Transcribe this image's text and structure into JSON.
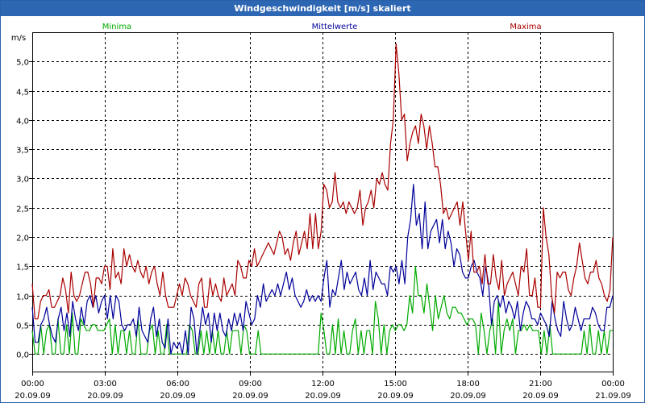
{
  "window": {
    "title": "Windgeschwindigkeit [m/s] skaliert"
  },
  "chart_data": {
    "type": "line",
    "title": "Windgeschwindigkeit [m/s] skaliert",
    "ylabel": "m/s",
    "ylim": [
      -0.3,
      5.5
    ],
    "yticks": [
      "0,0",
      "0,5",
      "1,0",
      "1,5",
      "2,0",
      "2,5",
      "3,0",
      "3,5",
      "4,0",
      "4,5",
      "5,0"
    ],
    "xlim_hours": [
      0,
      24
    ],
    "xticks": [
      {
        "time": "00:00",
        "date": "20.09.09"
      },
      {
        "time": "03:00",
        "date": "20.09.09"
      },
      {
        "time": "06:00",
        "date": "20.09.09"
      },
      {
        "time": "09:00",
        "date": "20.09.09"
      },
      {
        "time": "12:00",
        "date": "20.09.09"
      },
      {
        "time": "15:00",
        "date": "20.09.09"
      },
      {
        "time": "18:00",
        "date": "20.09.09"
      },
      {
        "time": "21:00",
        "date": "20.09.09"
      },
      {
        "time": "00:00",
        "date": "21.09.09"
      }
    ],
    "grid": true,
    "series": [
      {
        "name": "Minima",
        "color": "#00aa00",
        "values": [
          0.4,
          0.0,
          0.0,
          0.5,
          0.0,
          0.4,
          0.5,
          0.0,
          0.0,
          0.6,
          0.0,
          0.0,
          0.5,
          0.0,
          0.7,
          0.0,
          0.0,
          0.6,
          0.5,
          0.4,
          0.4,
          0.5,
          0.5,
          0.4,
          0.4,
          0.4,
          0.5,
          0.6,
          0.0,
          0.5,
          0.0,
          0.4,
          0.4,
          0.0,
          0.4,
          0.0,
          0.0,
          0.6,
          0.0,
          0.0,
          0.0,
          0.4,
          0.5,
          0.0,
          0.4,
          0.0,
          0.0,
          0.5,
          0.0,
          0.0,
          0.0,
          0.0,
          0.0,
          0.0,
          0.0,
          0.5,
          0.4,
          0.0,
          0.0,
          0.4,
          0.0,
          0.4,
          0.0,
          0.4,
          0.0,
          0.4,
          0.0,
          0.0,
          0.4,
          0.0,
          0.4,
          0.4,
          0.4,
          0.0,
          0.5,
          0.4,
          0.0,
          0.0,
          0.0,
          0.4,
          0.0,
          0.0,
          0.0,
          0.0,
          0.0,
          0.0,
          0.0,
          0.0,
          0.0,
          0.0,
          0.0,
          0.0,
          0.0,
          0.0,
          0.0,
          0.0,
          0.0,
          0.0,
          0.0,
          0.0,
          0.0,
          0.7,
          0.4,
          0.0,
          0.0,
          0.5,
          0.0,
          0.6,
          0.0,
          0.4,
          0.0,
          0.0,
          0.4,
          0.6,
          0.0,
          0.4,
          0.0,
          0.4,
          0.4,
          0.0,
          0.9,
          0.6,
          0.0,
          0.5,
          0.0,
          0.4,
          0.5,
          0.4,
          0.5,
          0.5,
          0.4,
          0.5,
          1.0,
          0.7,
          1.5,
          1.0,
          1.0,
          0.7,
          1.2,
          0.8,
          0.4,
          1.0,
          0.6,
          0.8,
          1.0,
          0.7,
          0.6,
          0.8,
          0.8,
          0.7,
          0.7,
          0.6,
          0.5,
          0.6,
          0.6,
          0.5,
          0.0,
          0.7,
          0.4,
          0.0,
          0.4,
          0.6,
          0.0,
          0.9,
          0.0,
          0.4,
          0.6,
          0.4,
          0.6,
          0.0,
          0.4,
          0.4,
          0.5,
          0.4,
          0.5,
          0.4,
          0.4,
          0.4,
          0.0,
          0.4,
          0.0,
          0.5,
          0.0,
          0.0,
          0.0,
          0.0,
          0.0,
          0.0,
          0.0,
          0.0,
          0.0,
          0.0,
          0.0,
          0.4,
          0.0,
          0.5,
          0.0,
          0.0,
          0.4,
          0.0,
          0.4,
          0.0,
          0.4,
          0.4
        ]
      },
      {
        "name": "Mittelwerte",
        "color": "#000099",
        "values": [
          0.8,
          0.2,
          0.2,
          0.5,
          0.6,
          0.8,
          0.5,
          0.3,
          0.2,
          0.6,
          0.8,
          0.4,
          0.7,
          0.3,
          0.9,
          0.6,
          0.4,
          0.8,
          0.5,
          0.9,
          1.0,
          0.8,
          1.0,
          0.7,
          0.9,
          1.0,
          0.6,
          1.0,
          0.6,
          1.0,
          0.9,
          0.5,
          0.4,
          0.5,
          0.5,
          0.6,
          0.3,
          0.8,
          0.4,
          0.3,
          0.2,
          0.6,
          0.8,
          0.3,
          0.6,
          0.2,
          0.1,
          0.6,
          0.0,
          0.2,
          0.1,
          0.2,
          0.0,
          0.4,
          0.0,
          0.8,
          0.6,
          0.0,
          0.4,
          0.8,
          0.5,
          0.7,
          0.2,
          0.7,
          0.4,
          0.7,
          0.4,
          0.3,
          0.6,
          0.4,
          0.7,
          0.5,
          0.7,
          0.4,
          0.9,
          0.7,
          0.5,
          0.6,
          1.0,
          0.8,
          1.2,
          0.9,
          1.0,
          1.1,
          1.0,
          1.2,
          1.0,
          1.2,
          1.4,
          1.1,
          1.3,
          1.0,
          0.9,
          0.8,
          0.9,
          1.1,
          0.9,
          1.0,
          0.9,
          1.0,
          0.9,
          1.3,
          1.6,
          0.8,
          1.1,
          1.0,
          1.3,
          1.6,
          1.1,
          1.4,
          1.2,
          1.3,
          1.4,
          1.1,
          1.0,
          1.3,
          1.0,
          1.6,
          1.1,
          1.4,
          1.3,
          1.2,
          1.2,
          1.0,
          1.5,
          1.4,
          1.5,
          1.2,
          1.6,
          1.2,
          2.0,
          2.3,
          2.9,
          2.2,
          2.4,
          1.8,
          2.6,
          1.8,
          2.1,
          2.2,
          2.3,
          1.9,
          2.3,
          1.8,
          2.1,
          1.9,
          1.5,
          1.8,
          1.7,
          1.4,
          1.3,
          1.3,
          1.5,
          1.6,
          1.4,
          1.3,
          1.0,
          1.5,
          1.2,
          0.5,
          0.9,
          1.0,
          0.8,
          1.0,
          0.7,
          0.9,
          0.8,
          0.6,
          0.9,
          0.4,
          0.7,
          0.9,
          0.8,
          0.6,
          0.6,
          0.5,
          0.7,
          0.6,
          0.5,
          0.3,
          0.9,
          0.6,
          0.4,
          0.3,
          0.9,
          0.6,
          0.4,
          0.5,
          0.8,
          0.6,
          0.4,
          0.6,
          0.6,
          0.6,
          0.8,
          0.7,
          0.5,
          0.4,
          0.4,
          0.8,
          0.8,
          1.0
        ]
      },
      {
        "name": "Maxima",
        "color": "#aa0000",
        "values": [
          1.2,
          0.6,
          0.6,
          0.9,
          1.0,
          1.0,
          1.1,
          0.8,
          0.8,
          0.9,
          1.0,
          1.3,
          1.1,
          0.7,
          1.4,
          1.0,
          0.9,
          1.0,
          1.2,
          1.4,
          1.4,
          1.2,
          0.8,
          1.3,
          1.3,
          1.2,
          1.5,
          1.5,
          1.1,
          1.8,
          1.3,
          1.4,
          1.2,
          1.8,
          1.5,
          1.7,
          1.5,
          1.4,
          1.6,
          1.4,
          1.3,
          1.5,
          1.2,
          1.4,
          1.5,
          1.2,
          1.0,
          1.4,
          1.0,
          0.8,
          0.8,
          0.8,
          1.0,
          1.2,
          1.0,
          1.3,
          1.2,
          1.0,
          0.9,
          0.8,
          1.2,
          1.3,
          0.8,
          0.8,
          1.3,
          1.0,
          1.2,
          1.0,
          0.9,
          1.3,
          1.0,
          1.1,
          1.2,
          1.0,
          1.6,
          1.5,
          1.3,
          1.3,
          1.6,
          1.5,
          1.8,
          1.5,
          1.6,
          1.7,
          1.8,
          1.9,
          1.8,
          1.7,
          1.9,
          2.1,
          2.0,
          1.7,
          1.8,
          1.6,
          1.9,
          2.1,
          1.7,
          1.9,
          2.1,
          1.8,
          2.4,
          1.8,
          2.4,
          1.8,
          2.1,
          2.9,
          2.8,
          2.5,
          2.6,
          3.1,
          2.6,
          2.5,
          2.6,
          2.4,
          2.6,
          2.5,
          2.4,
          2.5,
          2.8,
          2.2,
          2.5,
          2.6,
          2.8,
          2.5,
          3.0,
          2.9,
          3.1,
          2.9,
          2.8,
          3.6,
          4.0,
          5.3,
          4.8,
          4.0,
          4.1,
          3.3,
          3.6,
          3.8,
          3.9,
          3.6,
          4.1,
          3.9,
          3.5,
          3.9,
          3.6,
          3.2,
          3.2,
          2.9,
          2.4,
          2.5,
          2.3,
          2.4,
          2.5,
          2.6,
          2.2,
          2.6,
          2.1,
          1.6,
          2.1,
          1.4,
          1.4,
          1.5,
          1.2,
          1.7,
          1.2,
          1.2,
          1.7,
          1.3,
          1.1,
          1.6,
          1.0,
          1.2,
          1.3,
          1.4,
          1.2,
          1.0,
          1.5,
          1.4,
          1.8,
          1.0,
          1.0,
          1.3,
          0.8,
          0.8,
          2.5,
          2.0,
          1.7,
          1.0,
          0.7,
          1.4,
          1.3,
          1.4,
          1.4,
          1.1,
          1.0,
          1.3,
          1.5,
          1.9,
          1.6,
          1.3,
          1.2,
          1.4,
          1.4,
          1.6,
          1.3,
          1.2,
          1.0,
          0.9,
          1.1,
          2.0
        ]
      }
    ]
  }
}
